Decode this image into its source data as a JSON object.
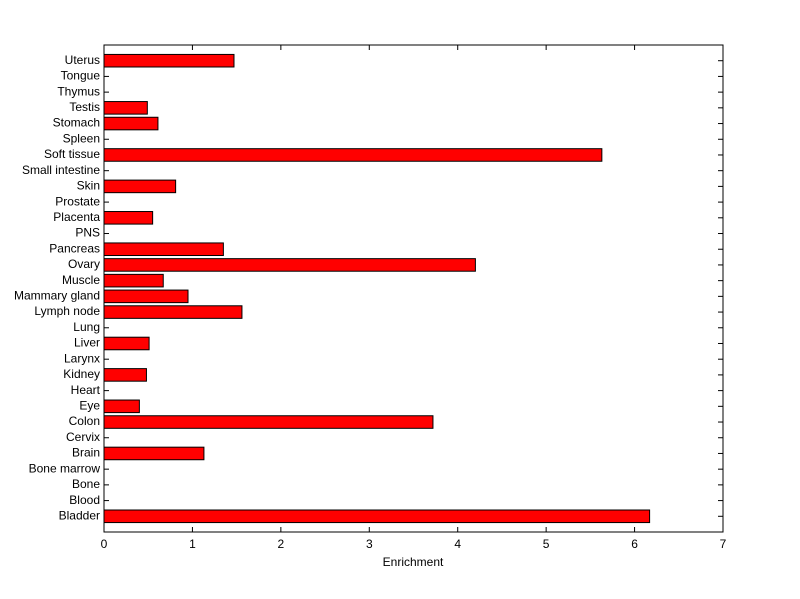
{
  "chart_data": {
    "type": "barh",
    "categories": [
      "Bladder",
      "Blood",
      "Bone",
      "Bone marrow",
      "Brain",
      "Cervix",
      "Colon",
      "Eye",
      "Heart",
      "Kidney",
      "Larynx",
      "Liver",
      "Lung",
      "Lymph node",
      "Mammary gland",
      "Muscle",
      "Ovary",
      "Pancreas",
      "PNS",
      "Placenta",
      "Prostate",
      "Skin",
      "Small intestine",
      "Soft tissue",
      "Spleen",
      "Stomach",
      "Testis",
      "Thymus",
      "Tongue",
      "Uterus"
    ],
    "values": [
      6.17,
      0,
      0,
      0,
      1.13,
      0,
      3.72,
      0.4,
      0,
      0.48,
      0,
      0.51,
      0,
      1.56,
      0.95,
      0.67,
      4.2,
      1.35,
      0,
      0.55,
      0,
      0.81,
      0,
      5.63,
      0,
      0.61,
      0.49,
      0,
      0,
      1.47
    ],
    "color": "#ff0000",
    "xlabel": "Enrichment",
    "xlim": [
      0,
      7
    ],
    "xticks": [
      0,
      1,
      2,
      3,
      4,
      5,
      6,
      7
    ]
  }
}
